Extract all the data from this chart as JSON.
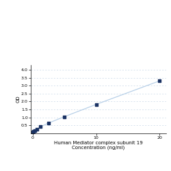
{
  "x_data": [
    0,
    0.156,
    0.312,
    0.625,
    1.25,
    2.5,
    5,
    10,
    20
  ],
  "y_data": [
    0.1,
    0.13,
    0.18,
    0.25,
    0.42,
    0.65,
    1.05,
    1.82,
    3.3
  ],
  "line_color": "#b8d0e8",
  "marker_color": "#1a3263",
  "marker_size": 3.5,
  "xlabel_line1": "Human Mediator complex subunit 19",
  "xlabel_line2": "Concentration (ng/ml)",
  "ylabel": "OD",
  "xlim": [
    -0.3,
    21
  ],
  "ylim": [
    0,
    4.3
  ],
  "xticks": [
    0,
    10,
    20
  ],
  "yticks": [
    0.5,
    1.0,
    1.5,
    2.0,
    2.5,
    3.0,
    3.5,
    4.0
  ],
  "grid_color": "#c8d8e8",
  "background_color": "#ffffff",
  "label_fontsize": 5.0,
  "tick_fontsize": 4.5
}
